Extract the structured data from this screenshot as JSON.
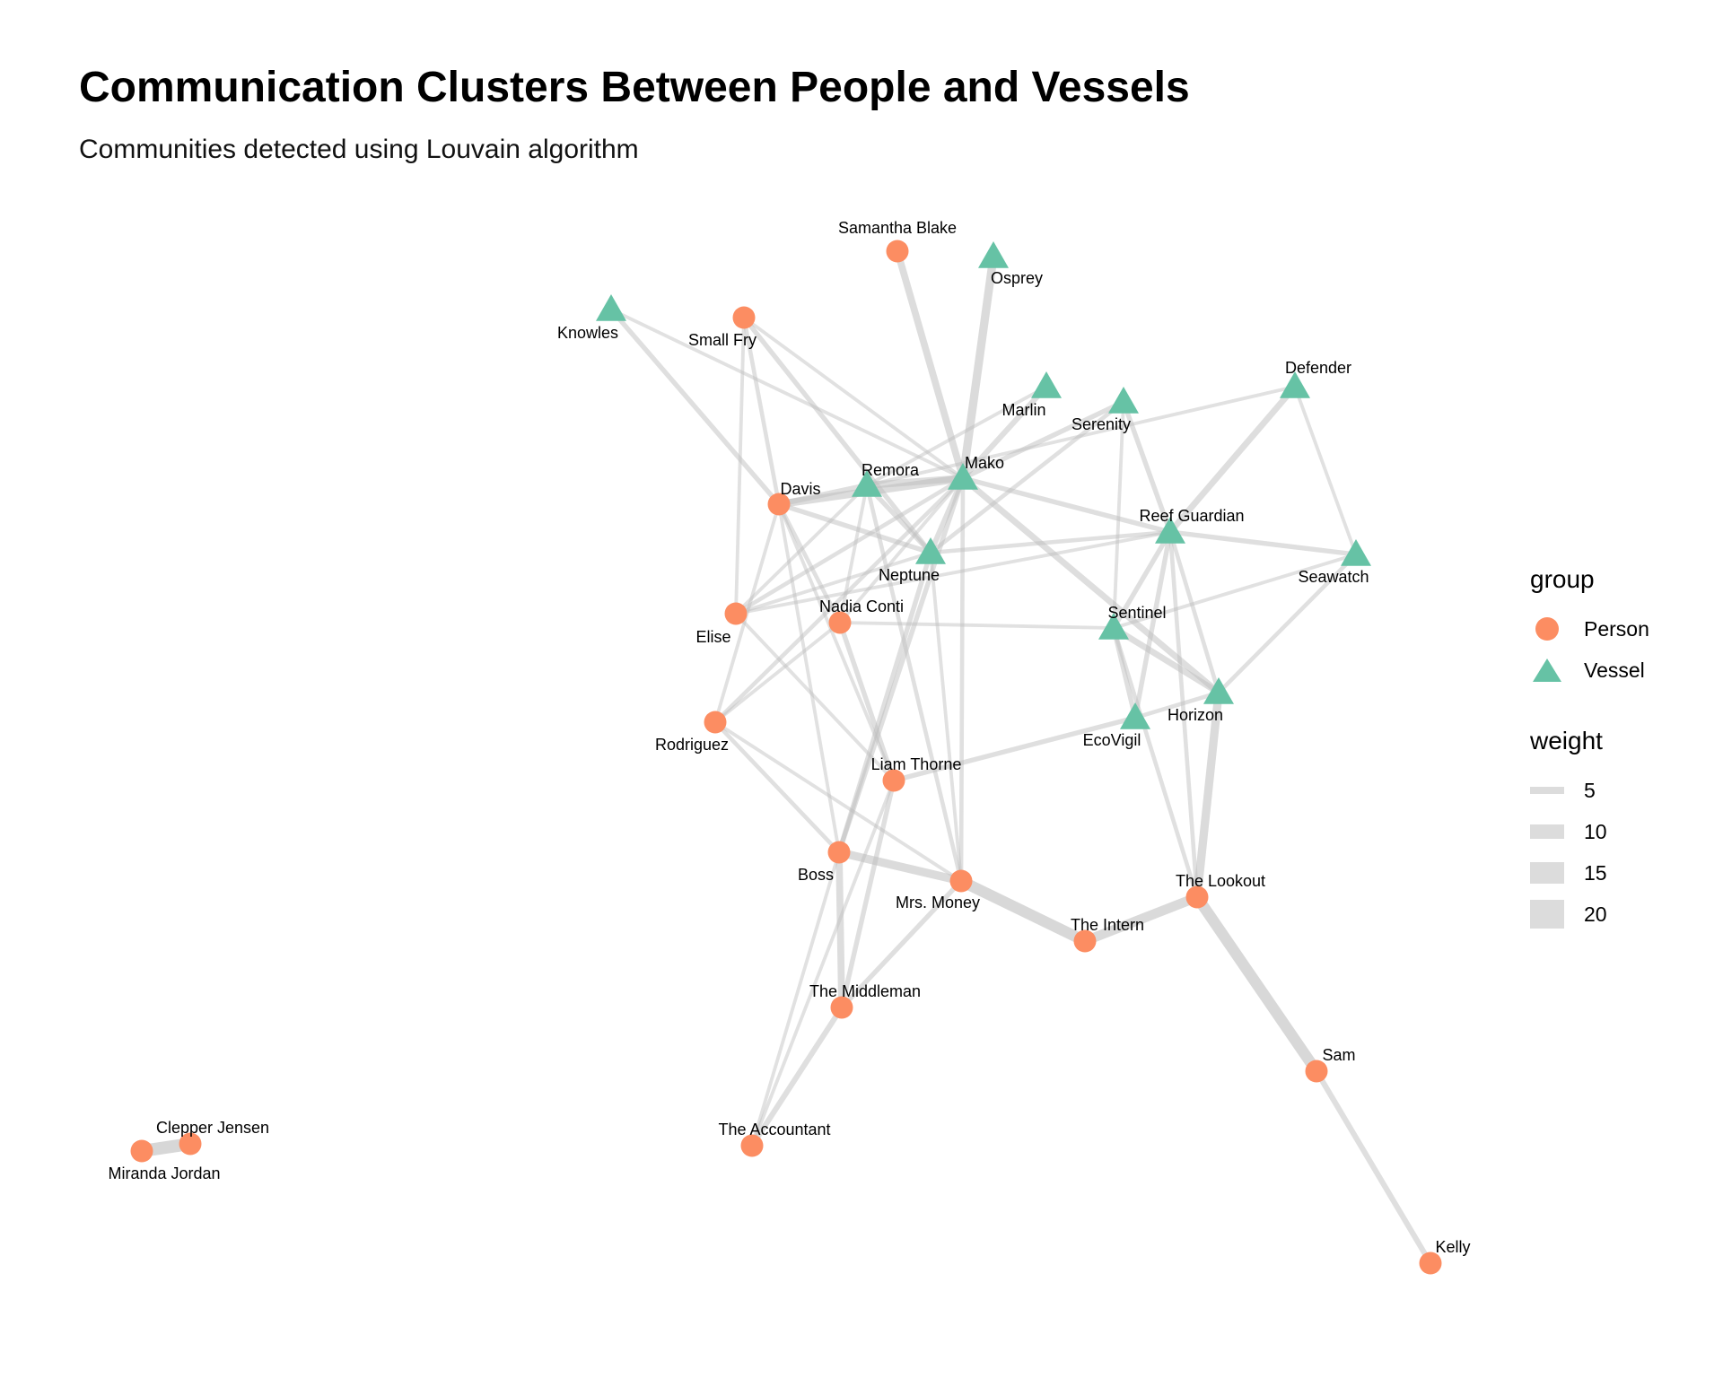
{
  "title": "Communication Clusters Between People and Vessels",
  "subtitle": "Communities detected using Louvain algorithm",
  "legend": {
    "group_title": "group",
    "groups": [
      {
        "label": "Person",
        "shape": "circle",
        "color": "#fc8d62"
      },
      {
        "label": "Vessel",
        "shape": "triangle",
        "color": "#66c2a5"
      }
    ],
    "weight_title": "weight",
    "weights": [
      "5",
      "10",
      "15",
      "20"
    ]
  },
  "colors": {
    "person": "#fc8d62",
    "vessel": "#66c2a5",
    "edge": "#bdbdbd"
  },
  "nodes": [
    {
      "id": "Samantha Blake",
      "group": "Person"
    },
    {
      "id": "Osprey",
      "group": "Vessel"
    },
    {
      "id": "Knowles",
      "group": "Vessel"
    },
    {
      "id": "Small Fry",
      "group": "Person"
    },
    {
      "id": "Marlin",
      "group": "Vessel"
    },
    {
      "id": "Serenity",
      "group": "Vessel"
    },
    {
      "id": "Defender",
      "group": "Vessel"
    },
    {
      "id": "Mako",
      "group": "Vessel"
    },
    {
      "id": "Remora",
      "group": "Vessel"
    },
    {
      "id": "Davis",
      "group": "Person"
    },
    {
      "id": "Reef Guardian",
      "group": "Vessel"
    },
    {
      "id": "Neptune",
      "group": "Vessel"
    },
    {
      "id": "Seawatch",
      "group": "Vessel"
    },
    {
      "id": "Nadia Conti",
      "group": "Person"
    },
    {
      "id": "Elise",
      "group": "Person"
    },
    {
      "id": "Sentinel",
      "group": "Vessel"
    },
    {
      "id": "Horizon",
      "group": "Vessel"
    },
    {
      "id": "EcoVigil",
      "group": "Vessel"
    },
    {
      "id": "Rodriguez",
      "group": "Person"
    },
    {
      "id": "Liam Thorne",
      "group": "Person"
    },
    {
      "id": "Boss",
      "group": "Person"
    },
    {
      "id": "Mrs. Money",
      "group": "Person"
    },
    {
      "id": "The Lookout",
      "group": "Person"
    },
    {
      "id": "The Intern",
      "group": "Person"
    },
    {
      "id": "The Middleman",
      "group": "Person"
    },
    {
      "id": "Sam",
      "group": "Person"
    },
    {
      "id": "The Accountant",
      "group": "Person"
    },
    {
      "id": "Clepper Jensen",
      "group": "Person"
    },
    {
      "id": "Miranda Jordan",
      "group": "Person"
    },
    {
      "id": "Kelly",
      "group": "Person"
    }
  ],
  "edges": [
    {
      "source": "Samantha Blake",
      "target": "Mako",
      "weight": 8
    },
    {
      "source": "Osprey",
      "target": "Mako",
      "weight": 10
    },
    {
      "source": "Knowles",
      "target": "Davis",
      "weight": 5
    },
    {
      "source": "Knowles",
      "target": "Mako",
      "weight": 3
    },
    {
      "source": "Small Fry",
      "target": "Davis",
      "weight": 4
    },
    {
      "source": "Small Fry",
      "target": "Neptune",
      "weight": 5
    },
    {
      "source": "Small Fry",
      "target": "Mako",
      "weight": 3
    },
    {
      "source": "Small Fry",
      "target": "Elise",
      "weight": 3
    },
    {
      "source": "Marlin",
      "target": "Mako",
      "weight": 6
    },
    {
      "source": "Marlin",
      "target": "Remora",
      "weight": 3
    },
    {
      "source": "Serenity",
      "target": "Mako",
      "weight": 5
    },
    {
      "source": "Serenity",
      "target": "Reef Guardian",
      "weight": 5
    },
    {
      "source": "Serenity",
      "target": "Neptune",
      "weight": 4
    },
    {
      "source": "Serenity",
      "target": "Sentinel",
      "weight": 3
    },
    {
      "source": "Defender",
      "target": "Reef Guardian",
      "weight": 7
    },
    {
      "source": "Defender",
      "target": "Seawatch",
      "weight": 3
    },
    {
      "source": "Defender",
      "target": "Remora",
      "weight": 3
    },
    {
      "source": "Mako",
      "target": "Davis",
      "weight": 9
    },
    {
      "source": "Mako",
      "target": "Remora",
      "weight": 8
    },
    {
      "source": "Mako",
      "target": "Neptune",
      "weight": 6
    },
    {
      "source": "Mako",
      "target": "Reef Guardian",
      "weight": 5
    },
    {
      "source": "Mako",
      "target": "Horizon",
      "weight": 7
    },
    {
      "source": "Mako",
      "target": "Elise",
      "weight": 4
    },
    {
      "source": "Mako",
      "target": "Rodriguez",
      "weight": 4
    },
    {
      "source": "Mako",
      "target": "Boss",
      "weight": 5
    },
    {
      "source": "Mako",
      "target": "Mrs. Money",
      "weight": 4
    },
    {
      "source": "Mako",
      "target": "Nadia Conti",
      "weight": 3
    },
    {
      "source": "Remora",
      "target": "Davis",
      "weight": 6
    },
    {
      "source": "Remora",
      "target": "Neptune",
      "weight": 5
    },
    {
      "source": "Remora",
      "target": "Elise",
      "weight": 3
    },
    {
      "source": "Remora",
      "target": "Nadia Conti",
      "weight": 3
    },
    {
      "source": "Remora",
      "target": "Mrs. Money",
      "weight": 4
    },
    {
      "source": "Davis",
      "target": "Neptune",
      "weight": 5
    },
    {
      "source": "Davis",
      "target": "Nadia Conti",
      "weight": 4
    },
    {
      "source": "Davis",
      "target": "Rodriguez",
      "weight": 3
    },
    {
      "source": "Davis",
      "target": "Boss",
      "weight": 3
    },
    {
      "source": "Davis",
      "target": "Liam Thorne",
      "weight": 3
    },
    {
      "source": "Reef Guardian",
      "target": "Neptune",
      "weight": 4
    },
    {
      "source": "Reef Guardian",
      "target": "Seawatch",
      "weight": 5
    },
    {
      "source": "Reef Guardian",
      "target": "Sentinel",
      "weight": 5
    },
    {
      "source": "Reef Guardian",
      "target": "EcoVigil",
      "weight": 5
    },
    {
      "source": "Reef Guardian",
      "target": "Horizon",
      "weight": 4
    },
    {
      "source": "Reef Guardian",
      "target": "The Lookout",
      "weight": 4
    },
    {
      "source": "Reef Guardian",
      "target": "Elise",
      "weight": 3
    },
    {
      "source": "Neptune",
      "target": "Elise",
      "weight": 3
    },
    {
      "source": "Neptune",
      "target": "Boss",
      "weight": 5
    },
    {
      "source": "Neptune",
      "target": "Mrs. Money",
      "weight": 3
    },
    {
      "source": "Seawatch",
      "target": "Sentinel",
      "weight": 3
    },
    {
      "source": "Seawatch",
      "target": "Horizon",
      "weight": 4
    },
    {
      "source": "Nadia Conti",
      "target": "Liam Thorne",
      "weight": 5
    },
    {
      "source": "Nadia Conti",
      "target": "Sentinel",
      "weight": 3
    },
    {
      "source": "Elise",
      "target": "Liam Thorne",
      "weight": 3
    },
    {
      "source": "Sentinel",
      "target": "Horizon",
      "weight": 7
    },
    {
      "source": "Sentinel",
      "target": "EcoVigil",
      "weight": 5
    },
    {
      "source": "Sentinel",
      "target": "The Lookout",
      "weight": 4
    },
    {
      "source": "Horizon",
      "target": "EcoVigil",
      "weight": 4
    },
    {
      "source": "Horizon",
      "target": "The Lookout",
      "weight": 10
    },
    {
      "source": "EcoVigil",
      "target": "Liam Thorne",
      "weight": 5
    },
    {
      "source": "Rodriguez",
      "target": "Boss",
      "weight": 4
    },
    {
      "source": "Rodriguez",
      "target": "Mrs. Money",
      "weight": 3
    },
    {
      "source": "Rodriguez",
      "target": "Nadia Conti",
      "weight": 3
    },
    {
      "source": "Liam Thorne",
      "target": "The Middleman",
      "weight": 5
    },
    {
      "source": "Liam Thorne",
      "target": "The Accountant",
      "weight": 3
    },
    {
      "source": "Boss",
      "target": "Mrs. Money",
      "weight": 10
    },
    {
      "source": "Boss",
      "target": "The Middleman",
      "weight": 8
    },
    {
      "source": "Boss",
      "target": "The Accountant",
      "weight": 3
    },
    {
      "source": "Mrs. Money",
      "target": "The Intern",
      "weight": 14
    },
    {
      "source": "Mrs. Money",
      "target": "The Middleman",
      "weight": 5
    },
    {
      "source": "The Lookout",
      "target": "The Intern",
      "weight": 12
    },
    {
      "source": "The Lookout",
      "target": "Sam",
      "weight": 14
    },
    {
      "source": "The Middleman",
      "target": "The Accountant",
      "weight": 6
    },
    {
      "source": "Sam",
      "target": "Kelly",
      "weight": 6
    },
    {
      "source": "Clepper Jensen",
      "target": "Miranda Jordan",
      "weight": 16
    }
  ]
}
